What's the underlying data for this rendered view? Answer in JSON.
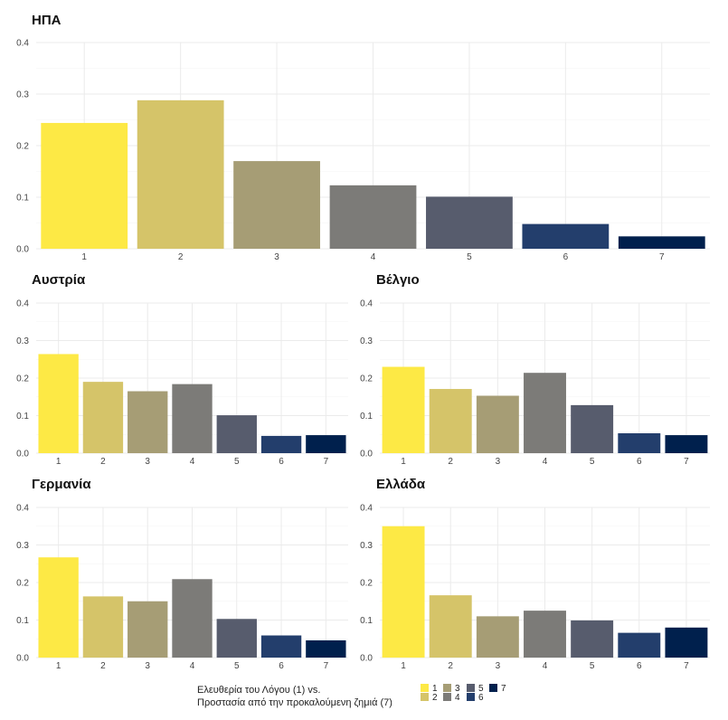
{
  "chart_data": [
    {
      "type": "bar",
      "title": "ΗΠΑ",
      "categories": [
        "1",
        "2",
        "3",
        "4",
        "5",
        "6",
        "7"
      ],
      "values": [
        0.244,
        0.288,
        0.17,
        0.123,
        0.101,
        0.048,
        0.024
      ],
      "ylim": [
        0,
        0.4
      ],
      "yticks": [
        "0.0",
        "0.1",
        "0.2",
        "0.3",
        "0.4"
      ],
      "grid": true
    },
    {
      "type": "bar",
      "title": "Αυστρία",
      "categories": [
        "1",
        "2",
        "3",
        "4",
        "5",
        "6",
        "7"
      ],
      "values": [
        0.264,
        0.19,
        0.165,
        0.184,
        0.101,
        0.046,
        0.048
      ],
      "ylim": [
        0,
        0.4
      ],
      "yticks": [
        "0.0",
        "0.1",
        "0.2",
        "0.3",
        "0.4"
      ],
      "grid": true
    },
    {
      "type": "bar",
      "title": "Βέλγιο",
      "categories": [
        "1",
        "2",
        "3",
        "4",
        "5",
        "6",
        "7"
      ],
      "values": [
        0.23,
        0.171,
        0.153,
        0.214,
        0.128,
        0.053,
        0.048
      ],
      "ylim": [
        0,
        0.4
      ],
      "yticks": [
        "0.0",
        "0.1",
        "0.2",
        "0.3",
        "0.4"
      ],
      "grid": true
    },
    {
      "type": "bar",
      "title": "Γερμανία",
      "categories": [
        "1",
        "2",
        "3",
        "4",
        "5",
        "6",
        "7"
      ],
      "values": [
        0.267,
        0.163,
        0.15,
        0.209,
        0.103,
        0.059,
        0.046
      ],
      "ylim": [
        0,
        0.4
      ],
      "yticks": [
        "0.0",
        "0.1",
        "0.2",
        "0.3",
        "0.4"
      ],
      "grid": true
    },
    {
      "type": "bar",
      "title": "Ελλάδα",
      "categories": [
        "1",
        "2",
        "3",
        "4",
        "5",
        "6",
        "7"
      ],
      "values": [
        0.35,
        0.166,
        0.11,
        0.125,
        0.099,
        0.066,
        0.08
      ],
      "ylim": [
        0,
        0.4
      ],
      "yticks": [
        "0.0",
        "0.1",
        "0.2",
        "0.3",
        "0.4"
      ],
      "grid": true
    }
  ],
  "legend": {
    "title_line1": "Ελευθερία του Λόγου (1) vs.",
    "title_line2": "Προστασία από την προκαλούμενη ζημιά (7)",
    "placement": "bottom",
    "items": [
      {
        "label": "1",
        "color": "#fde945"
      },
      {
        "label": "2",
        "color": "#d5c469"
      },
      {
        "label": "3",
        "color": "#a69d75"
      },
      {
        "label": "4",
        "color": "#7c7b78"
      },
      {
        "label": "5",
        "color": "#575c6d"
      },
      {
        "label": "6",
        "color": "#233e6c"
      },
      {
        "label": "7",
        "color": "#00204d"
      }
    ]
  }
}
